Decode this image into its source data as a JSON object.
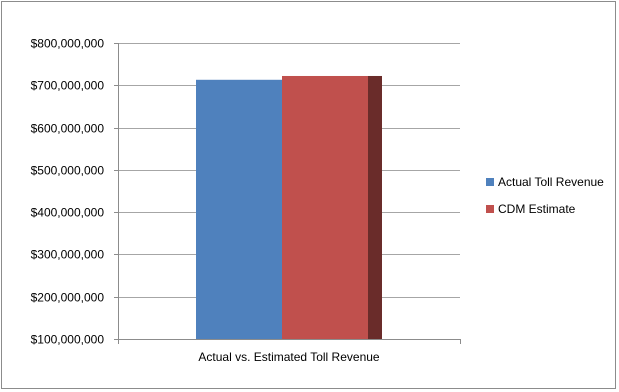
{
  "chart_data": {
    "type": "bar",
    "title": "",
    "xlabel": "",
    "ylabel": "",
    "categories": [
      "Actual vs. Estimated Toll Revenue"
    ],
    "series": [
      {
        "name": "Actual Toll Revenue",
        "values": [
          713000000
        ],
        "color": "#4f81bd"
      },
      {
        "name": "CDM Estimate",
        "values": [
          722000000
        ],
        "color": "#c0504d"
      }
    ],
    "ylim": [
      100000000,
      800000000
    ],
    "ytick_values": [
      100000000,
      200000000,
      300000000,
      400000000,
      500000000,
      600000000,
      700000000,
      800000000
    ],
    "ytick_labels": [
      "$100,000,000",
      "$200,000,000",
      "$300,000,000",
      "$400,000,000",
      "$500,000,000",
      "$600,000,000",
      "$700,000,000",
      "$800,000,000"
    ],
    "grid": true,
    "legend_position": "right"
  }
}
